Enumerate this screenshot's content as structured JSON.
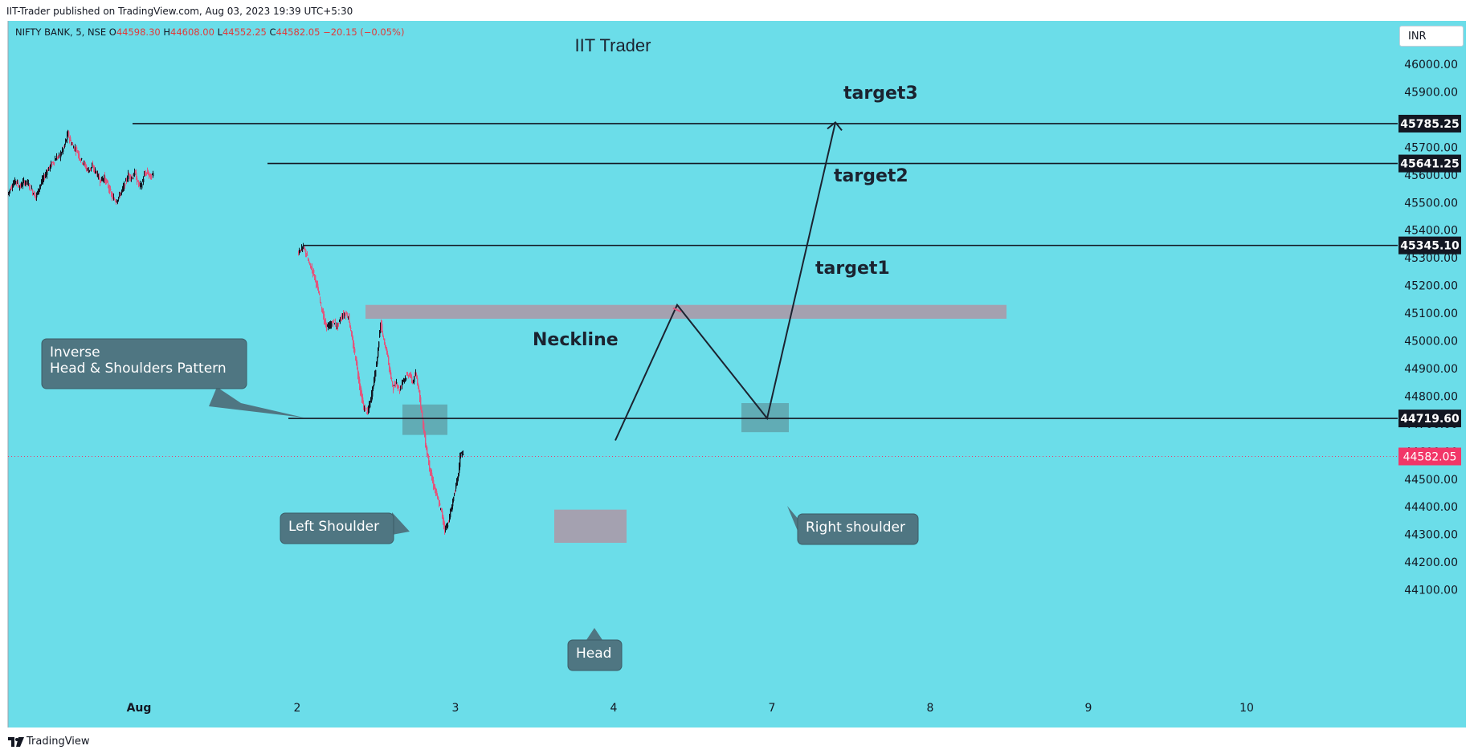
{
  "header": {
    "publish_info": "IIT-Trader published on TradingView.com, Aug 03, 2023 19:39 UTC+5:30"
  },
  "symbol": {
    "name": "NIFTY BANK, 5, NSE",
    "open_label": "O",
    "open": "44598.30",
    "high_label": "H",
    "high": "44608.00",
    "low_label": "L",
    "low": "44552.25",
    "close_label": "C",
    "close": "44582.05",
    "change": "−20.15 (−0.05%)"
  },
  "currency": "INR",
  "footer": {
    "brand": "TradingView"
  },
  "colors": {
    "background": "#6bdde9",
    "up_candle": "#131722",
    "down_candle": "#e0577e",
    "last_price": "#f23668",
    "callout": "#4f7682",
    "zone": "#a89dad",
    "shoulder_zone": "#5fa3ab"
  },
  "chart_data": {
    "type": "candlestick",
    "title": "IIT Trader",
    "y_ticks": [
      "46000.00",
      "45900.00",
      "45800.00",
      "45700.00",
      "45600.00",
      "45500.00",
      "45400.00",
      "45300.00",
      "45200.00",
      "45100.00",
      "45000.00",
      "44900.00",
      "44800.00",
      "44700.00",
      "44600.00",
      "44500.00",
      "44400.00",
      "44300.00",
      "44200.00",
      "44100.00"
    ],
    "x_ticks": [
      "Aug",
      "2",
      "3",
      "4",
      "7",
      "8",
      "9",
      "10"
    ],
    "x_tick_dates": [
      "2023-08-01",
      "2023-08-02",
      "2023-08-03",
      "2023-08-04",
      "2023-08-07",
      "2023-08-08",
      "2023-08-09",
      "2023-08-10"
    ],
    "ylim": [
      44050,
      46100
    ],
    "last_price": {
      "value": 44582.05,
      "label": "44582.05"
    },
    "horizontal_levels": [
      {
        "value": 45785.25,
        "label": "45785.25",
        "from_date": "2023-08-01",
        "annotation": "target3"
      },
      {
        "value": 45641.25,
        "label": "45641.25",
        "from_date": "2023-08-01",
        "annotation": "target2"
      },
      {
        "value": 45345.1,
        "label": "45345.10",
        "from_date": "2023-08-02",
        "annotation": "target1"
      },
      {
        "value": 44719.6,
        "label": "44719.60",
        "from_date": "2023-08-02",
        "annotation": ""
      }
    ],
    "annotations": {
      "pattern": [
        "Inverse",
        "Head & Shoulders Pattern"
      ],
      "neckline": "Neckline",
      "left_shoulder": "Left Shoulder",
      "head": "Head",
      "right_shoulder": "Right shoulder",
      "target1": "target1",
      "target2": "target2",
      "target3": "target3"
    },
    "zones": [
      {
        "name": "neckline",
        "from": "2023-08-02",
        "to": "2023-08-08",
        "low": 45080,
        "high": 45130
      },
      {
        "name": "left-shoulder",
        "from": "2023-08-02",
        "to": "2023-08-03",
        "low": 44660,
        "high": 44770
      },
      {
        "name": "head",
        "from": "2023-08-03",
        "to": "2023-08-04",
        "low": 44270,
        "high": 44390
      },
      {
        "name": "right-shoulder",
        "from": "2023-08-04",
        "to": "2023-08-07",
        "low": 44670,
        "high": 44775
      }
    ],
    "projection_path": [
      {
        "date": "2023-08-04",
        "value": 44640
      },
      {
        "date": "2023-08-04",
        "value": 45130
      },
      {
        "date": "2023-08-07",
        "value": 44720
      },
      {
        "date": "2023-08-07",
        "value": 45790
      }
    ],
    "price_path_day1": [
      [
        0,
        45530
      ],
      [
        5,
        45560
      ],
      [
        10,
        45580
      ],
      [
        15,
        45555
      ],
      [
        20,
        45575
      ],
      [
        25,
        45570
      ],
      [
        30,
        45545
      ],
      [
        35,
        45520
      ],
      [
        40,
        45560
      ],
      [
        45,
        45590
      ],
      [
        50,
        45620
      ],
      [
        55,
        45640
      ],
      [
        60,
        45660
      ],
      [
        65,
        45670
      ],
      [
        70,
        45700
      ],
      [
        75,
        45750
      ],
      [
        78,
        45720
      ],
      [
        82,
        45700
      ],
      [
        86,
        45690
      ],
      [
        90,
        45660
      ],
      [
        95,
        45640
      ],
      [
        100,
        45615
      ],
      [
        105,
        45630
      ],
      [
        110,
        45610
      ],
      [
        115,
        45580
      ],
      [
        120,
        45590
      ],
      [
        125,
        45560
      ],
      [
        130,
        45520
      ],
      [
        135,
        45505
      ],
      [
        140,
        45530
      ],
      [
        145,
        45560
      ],
      [
        150,
        45600
      ],
      [
        155,
        45590
      ],
      [
        158,
        45610
      ],
      [
        162,
        45570
      ],
      [
        166,
        45560
      ],
      [
        170,
        45600
      ],
      [
        174,
        45610
      ],
      [
        178,
        45590
      ],
      [
        181,
        45605
      ]
    ],
    "price_path_day2": [
      [
        181,
        45320
      ],
      [
        186,
        45335
      ],
      [
        190,
        45330
      ],
      [
        195,
        45280
      ],
      [
        200,
        45250
      ],
      [
        205,
        45200
      ],
      [
        210,
        45130
      ],
      [
        215,
        45060
      ],
      [
        220,
        45050
      ],
      [
        225,
        45070
      ],
      [
        230,
        45050
      ],
      [
        235,
        45085
      ],
      [
        240,
        45100
      ],
      [
        244,
        45090
      ],
      [
        249,
        45000
      ],
      [
        254,
        44920
      ],
      [
        259,
        44820
      ],
      [
        263,
        44760
      ],
      [
        268,
        44740
      ],
      [
        272,
        44790
      ],
      [
        276,
        44860
      ],
      [
        280,
        44940
      ],
      [
        284,
        45070
      ],
      [
        288,
        45000
      ],
      [
        292,
        44960
      ],
      [
        296,
        44880
      ],
      [
        300,
        44830
      ],
      [
        304,
        44850
      ],
      [
        308,
        44820
      ],
      [
        312,
        44860
      ],
      [
        316,
        44870
      ],
      [
        320,
        44880
      ],
      [
        324,
        44850
      ],
      [
        328,
        44880
      ],
      [
        332,
        44820
      ],
      [
        336,
        44720
      ],
      [
        340,
        44630
      ],
      [
        344,
        44560
      ],
      [
        348,
        44500
      ],
      [
        352,
        44460
      ],
      [
        356,
        44420
      ],
      [
        360,
        44380
      ],
      [
        364,
        44320
      ],
      [
        368,
        44340
      ],
      [
        372,
        44390
      ],
      [
        376,
        44450
      ],
      [
        380,
        44500
      ],
      [
        384,
        44600
      ],
      [
        387,
        44590
      ]
    ]
  }
}
